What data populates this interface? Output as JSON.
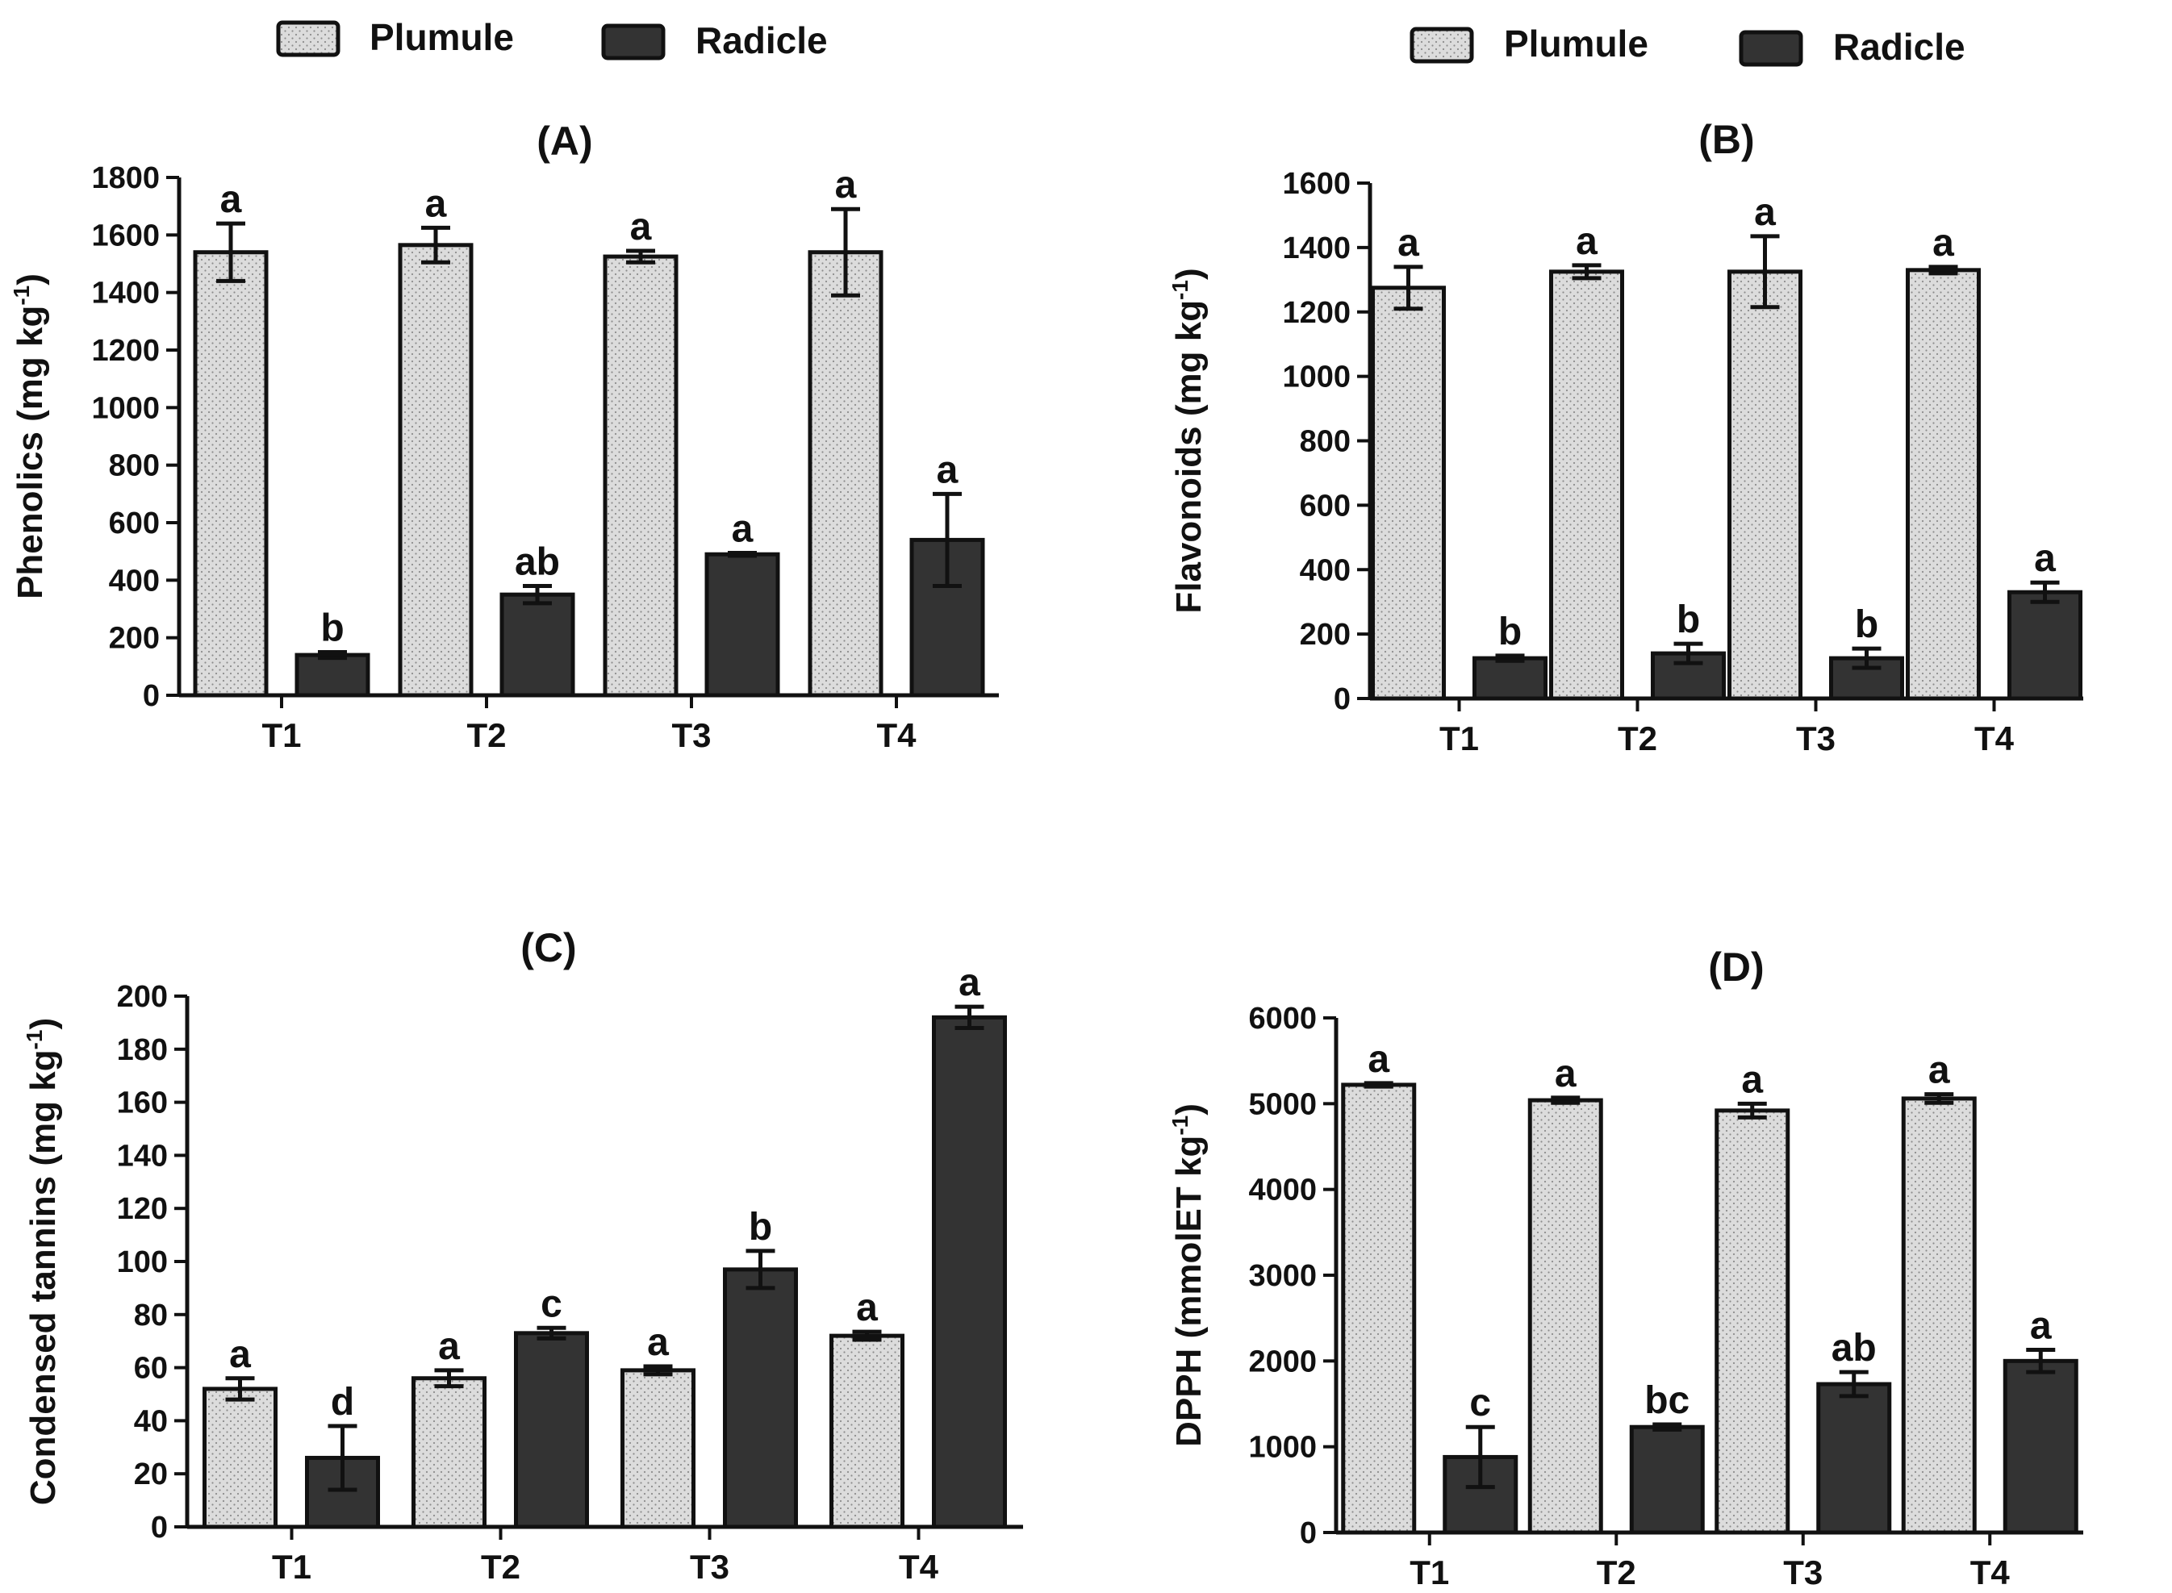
{
  "colors": {
    "plumule": "#d9d9d9",
    "radicle": "#333333",
    "axis": "#111111"
  },
  "legend": [
    {
      "series": [
        "Plumule",
        "Radicle"
      ]
    },
    {
      "series": [
        "Plumule",
        "Radicle"
      ]
    }
  ],
  "chart_data": [
    {
      "type": "bar",
      "title": "(A)",
      "ylabel": "Phenolics (mg kg",
      "ylabel_sup": "-1",
      "ylabel_end": ")",
      "categories": [
        "T1",
        "T2",
        "T3",
        "T4"
      ],
      "ylim": [
        0,
        1800
      ],
      "yticks": [
        0,
        200,
        400,
        600,
        800,
        1000,
        1200,
        1400,
        1600,
        1800
      ],
      "series": [
        {
          "name": "Plumule",
          "values": [
            1540,
            1565,
            1525,
            1540
          ],
          "errors": [
            100,
            60,
            20,
            150
          ],
          "letters": [
            "a",
            "a",
            "a",
            "a"
          ]
        },
        {
          "name": "Radicle",
          "values": [
            140,
            350,
            490,
            540
          ],
          "errors": [
            10,
            30,
            5,
            160
          ],
          "letters": [
            "b",
            "ab",
            "a",
            "a"
          ]
        }
      ]
    },
    {
      "type": "bar",
      "title": "(B)",
      "ylabel": "Flavonoids (mg kg",
      "ylabel_sup": "-1",
      "ylabel_end": ")",
      "categories": [
        "T1",
        "T2",
        "T3",
        "T4"
      ],
      "ylim": [
        0,
        1600
      ],
      "yticks": [
        0,
        200,
        400,
        600,
        800,
        1000,
        1200,
        1400,
        1600
      ],
      "series": [
        {
          "name": "Plumule",
          "values": [
            1275,
            1325,
            1325,
            1330
          ],
          "errors": [
            65,
            20,
            110,
            10
          ],
          "letters": [
            "a",
            "a",
            "a",
            "a"
          ]
        },
        {
          "name": "Radicle",
          "values": [
            125,
            140,
            125,
            330
          ],
          "errors": [
            8,
            30,
            30,
            30
          ],
          "letters": [
            "b",
            "b",
            "b",
            "a"
          ]
        }
      ]
    },
    {
      "type": "bar",
      "title": "(C)",
      "ylabel": "Condensed tannins (mg kg",
      "ylabel_sup": "-1",
      "ylabel_end": ")",
      "categories": [
        "T1",
        "T2",
        "T3",
        "T4"
      ],
      "ylim": [
        0,
        200
      ],
      "yticks": [
        0,
        20,
        40,
        60,
        80,
        100,
        120,
        140,
        160,
        180,
        200
      ],
      "series": [
        {
          "name": "Plumule",
          "values": [
            52,
            56,
            59,
            72
          ],
          "errors": [
            4,
            3,
            1.5,
            1.5
          ],
          "letters": [
            "a",
            "a",
            "a",
            "a"
          ]
        },
        {
          "name": "Radicle",
          "values": [
            26,
            73,
            97,
            192
          ],
          "errors": [
            12,
            2,
            7,
            4
          ],
          "letters": [
            "d",
            "c",
            "b",
            "a"
          ]
        }
      ]
    },
    {
      "type": "bar",
      "title": "(D)",
      "ylabel": "DPPH (mmolET kg",
      "ylabel_sup": "-1",
      "ylabel_end": ")",
      "categories": [
        "T1",
        "T2",
        "T3",
        "T4"
      ],
      "ylim": [
        0,
        6000
      ],
      "yticks": [
        0,
        1000,
        2000,
        3000,
        4000,
        5000,
        6000
      ],
      "series": [
        {
          "name": "Plumule",
          "values": [
            5220,
            5040,
            4920,
            5060
          ],
          "errors": [
            20,
            30,
            80,
            50
          ],
          "letters": [
            "a",
            "a",
            "a",
            "a"
          ]
        },
        {
          "name": "Radicle",
          "values": [
            880,
            1230,
            1730,
            2000
          ],
          "errors": [
            350,
            30,
            140,
            130
          ],
          "letters": [
            "c",
            "bc",
            "ab",
            "a"
          ]
        }
      ]
    }
  ]
}
